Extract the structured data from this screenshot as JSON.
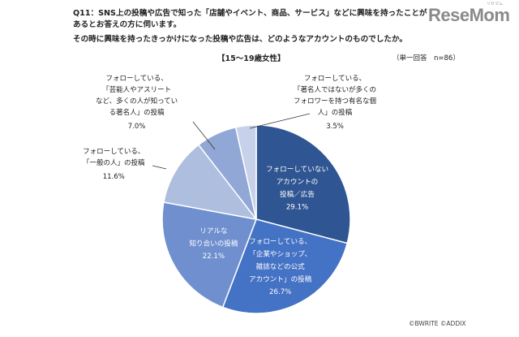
{
  "header": {
    "question_line1": "Q11：SNS上の投稿や広告で知った「店舗やイベント、商品、サービス」などに興味を持ったことが",
    "question_line2": "あるとお答えの方に伺います。",
    "question_line3": "その時に興味を持ったきっかけになった投稿や広告は、どのようなアカウントのものでしたか。",
    "subtitle": "【15～19歳女性】",
    "basis": "（単一回答　n=86）"
  },
  "logo": {
    "text": "ReseMom",
    "ruby": "リセマム"
  },
  "credit": "©BWRITE ©ADDIX",
  "chart_data": {
    "type": "pie",
    "title": "【15～19歳女性】",
    "start": "12 o'clock, clockwise",
    "slices": [
      {
        "label": [
          "フォローしていない",
          "アカウントの",
          "投稿／広告"
        ],
        "value": 29.1,
        "value_text": "29.1%",
        "color": "#2f5592",
        "label_position": "inside",
        "label_color": "#ffffff"
      },
      {
        "label": [
          "フォローしている、",
          "「企業やショップ、",
          "雑誌などの公式",
          "アカウント」の投稿"
        ],
        "value": 26.7,
        "value_text": "26.7%",
        "color": "#4472c4",
        "label_position": "inside",
        "label_color": "#ffffff"
      },
      {
        "label": [
          "リアルな",
          "知り合いの投稿"
        ],
        "value": 22.1,
        "value_text": "22.1%",
        "color": "#6f8fcf",
        "label_position": "inside",
        "label_color": "#ffffff"
      },
      {
        "label": [
          "フォローしている、",
          "「一般の人」の投稿"
        ],
        "value": 11.6,
        "value_text": "11.6%",
        "color": "#aebedf",
        "label_position": "outside",
        "label_color": "#222222"
      },
      {
        "label": [
          "フォローしている、",
          "「芸能人やアスリート",
          "など、多くの人が知ってい",
          "る著名人」の投稿"
        ],
        "value": 7.0,
        "value_text": "7.0%",
        "color": "#91a7d6",
        "label_position": "outside",
        "label_color": "#222222"
      },
      {
        "label": [
          "フォローしている、",
          "「著名人ではないが多くの",
          "フォロワーを持つ有名な個",
          "人」の投稿"
        ],
        "value": 3.5,
        "value_text": "3.5%",
        "color": "#c7d1e9",
        "label_position": "outside",
        "label_color": "#222222"
      }
    ]
  }
}
